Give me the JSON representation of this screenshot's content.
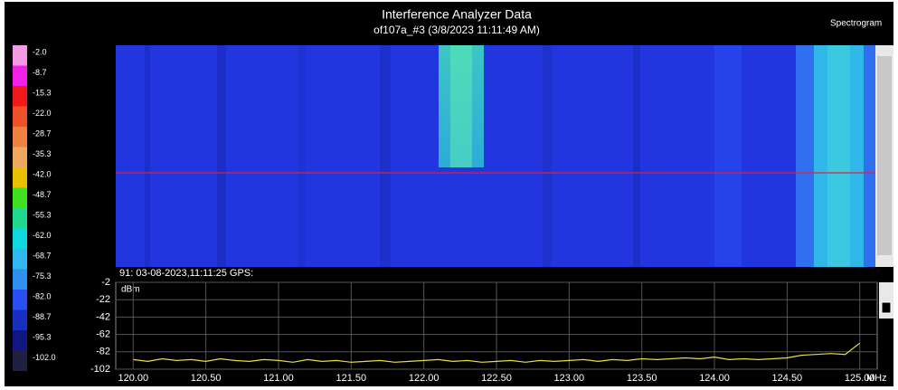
{
  "header": {
    "title": "Interference Analyzer Data",
    "subtitle": "of107a_#3 (3/8/2023 11:11:49 AM)",
    "mode": "Spectrogram"
  },
  "color_scale": {
    "labels": [
      "-2.0",
      "-8.7",
      "-15.3",
      "-22.0",
      "-28.7",
      "-35.3",
      "-42.0",
      "-48.7",
      "-55.3",
      "-62.0",
      "-68.7",
      "-75.3",
      "-82.0",
      "-88.7",
      "-95.3",
      "-102.0"
    ],
    "colors": [
      "#f59ae6",
      "#f020e8",
      "#f01818",
      "#f05028",
      "#f08040",
      "#f0a860",
      "#e8c000",
      "#40e020",
      "#20d890",
      "#10d8e0",
      "#30b8f0",
      "#3090f0",
      "#2850f0",
      "#1830c0",
      "#101880",
      "#202040"
    ]
  },
  "marker": "91:  03-08-2023,11:11:25   GPS:",
  "trace": {
    "unit": "dBm",
    "x_unit": "MHz",
    "color": "#e8e040",
    "xlim": [
      119.88,
      125.12
    ],
    "ylim": [
      -102,
      -2
    ],
    "yticks": [
      -2,
      -22,
      -42,
      -62,
      -82,
      -102
    ],
    "xticks": [
      {
        "value": 120,
        "label": "120.00"
      },
      {
        "value": 120.5,
        "label": "120.50"
      },
      {
        "value": 121,
        "label": "121.00"
      },
      {
        "value": 121.5,
        "label": "121.50"
      },
      {
        "value": 122,
        "label": "122.00"
      },
      {
        "value": 122.5,
        "label": "122.50"
      },
      {
        "value": 123,
        "label": "123.00"
      },
      {
        "value": 123.5,
        "label": "123.50"
      },
      {
        "value": 124,
        "label": "124.00"
      },
      {
        "value": 124.5,
        "label": "124.50"
      },
      {
        "value": 125,
        "label": "125.00"
      }
    ],
    "x": [
      120,
      120.1,
      120.2,
      120.3,
      120.4,
      120.5,
      120.6,
      120.7,
      120.8,
      120.9,
      121,
      121.1,
      121.2,
      121.3,
      121.4,
      121.5,
      121.6,
      121.7,
      121.8,
      121.9,
      122,
      122.1,
      122.2,
      122.3,
      122.4,
      122.5,
      122.6,
      122.7,
      122.8,
      122.9,
      123,
      123.1,
      123.2,
      123.3,
      123.4,
      123.5,
      123.6,
      123.7,
      123.8,
      123.9,
      124,
      124.1,
      124.2,
      124.3,
      124.4,
      124.5,
      124.6,
      124.7,
      124.8,
      124.9,
      125
    ],
    "values": [
      -91,
      -93,
      -90,
      -92,
      -91,
      -93,
      -90,
      -92,
      -93,
      -91,
      -92,
      -94,
      -91,
      -93,
      -92,
      -94,
      -93,
      -92,
      -94,
      -93,
      -92,
      -91,
      -93,
      -92,
      -94,
      -93,
      -92,
      -94,
      -92,
      -93,
      -92,
      -91,
      -93,
      -91,
      -92,
      -90,
      -91,
      -90,
      -89,
      -90,
      -88,
      -91,
      -90,
      -91,
      -90,
      -89,
      -86,
      -85,
      -84,
      -85,
      -72
    ]
  }
}
